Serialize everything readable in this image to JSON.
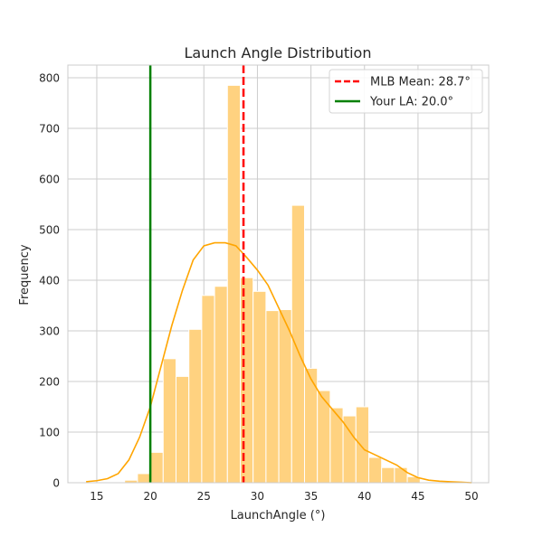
{
  "chart_data": {
    "type": "histogram",
    "title": "Launch Angle Distribution",
    "xlabel": "LaunchAngle (°)",
    "ylabel": "Frequency",
    "xlim": [
      12.3,
      51.6
    ],
    "ylim": [
      0,
      825
    ],
    "xticks": [
      15,
      20,
      25,
      30,
      35,
      40,
      45,
      50
    ],
    "yticks": [
      0,
      100,
      200,
      300,
      400,
      500,
      600,
      700,
      800
    ],
    "grid": true,
    "legend_position": "top-right",
    "bins": {
      "start": 14.0,
      "width": 1.2,
      "counts": [
        0,
        0,
        0,
        5,
        18,
        60,
        245,
        210,
        303,
        370,
        388,
        785,
        405,
        378,
        340,
        342,
        548,
        226,
        182,
        148,
        132,
        150,
        50,
        30,
        30,
        12,
        0,
        0,
        0,
        0
      ]
    },
    "bar_color": "#ffd280",
    "kde": {
      "color": "#ffa500",
      "x": [
        14,
        15,
        16,
        17,
        18,
        19,
        20,
        21,
        22,
        23,
        24,
        25,
        26,
        27,
        28,
        29,
        30,
        31,
        32,
        33,
        34,
        35,
        36,
        37,
        38,
        39,
        40,
        41,
        42,
        43,
        44,
        45,
        46,
        47,
        48,
        49,
        50
      ],
      "y": [
        2,
        4,
        8,
        18,
        45,
        90,
        150,
        230,
        310,
        380,
        440,
        468,
        474,
        474,
        468,
        445,
        420,
        390,
        345,
        300,
        250,
        205,
        170,
        145,
        120,
        90,
        65,
        55,
        45,
        35,
        20,
        10,
        5,
        3,
        2,
        1,
        0
      ]
    },
    "reference_lines": [
      {
        "name": "MLB Mean: 28.7°",
        "x": 28.7,
        "color": "#ff0000",
        "style": "dashed"
      },
      {
        "name": "Your LA: 20.0°",
        "x": 20.0,
        "color": "#008000",
        "style": "solid"
      }
    ]
  }
}
